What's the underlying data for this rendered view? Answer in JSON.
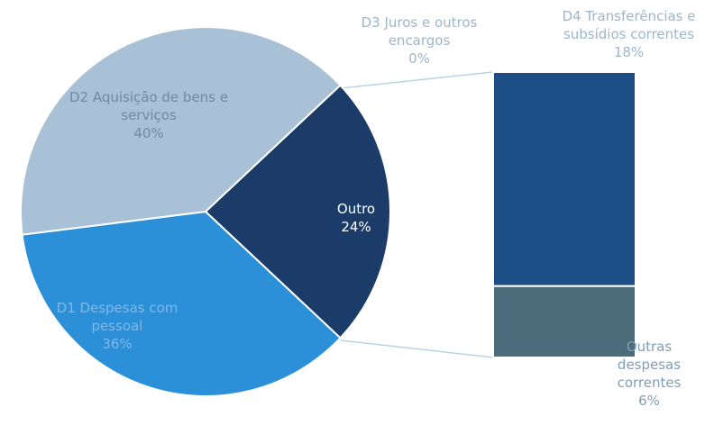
{
  "chart_data": [
    {
      "type": "pie",
      "categories": [
        "Outro",
        "D1 Despesas com pessoal",
        "D2 Aquisição de bens e serviços"
      ],
      "values": [
        24,
        36,
        40
      ],
      "value_labels": [
        "24%",
        "36%",
        "40%"
      ],
      "colors": [
        "#1b3b68",
        "#2c90d8",
        "#a9c1d6"
      ]
    },
    {
      "type": "bar",
      "categories": [
        "D3 Juros e outros encargos",
        "D4 Transferências e subsídios correntes",
        "Outras despesas correntes"
      ],
      "values": [
        0,
        18,
        6
      ],
      "value_labels": [
        "0%",
        "18%",
        "6%"
      ],
      "colors": [
        "#2a5a8e",
        "#1d4e85",
        "#4b6c7b"
      ]
    }
  ]
}
